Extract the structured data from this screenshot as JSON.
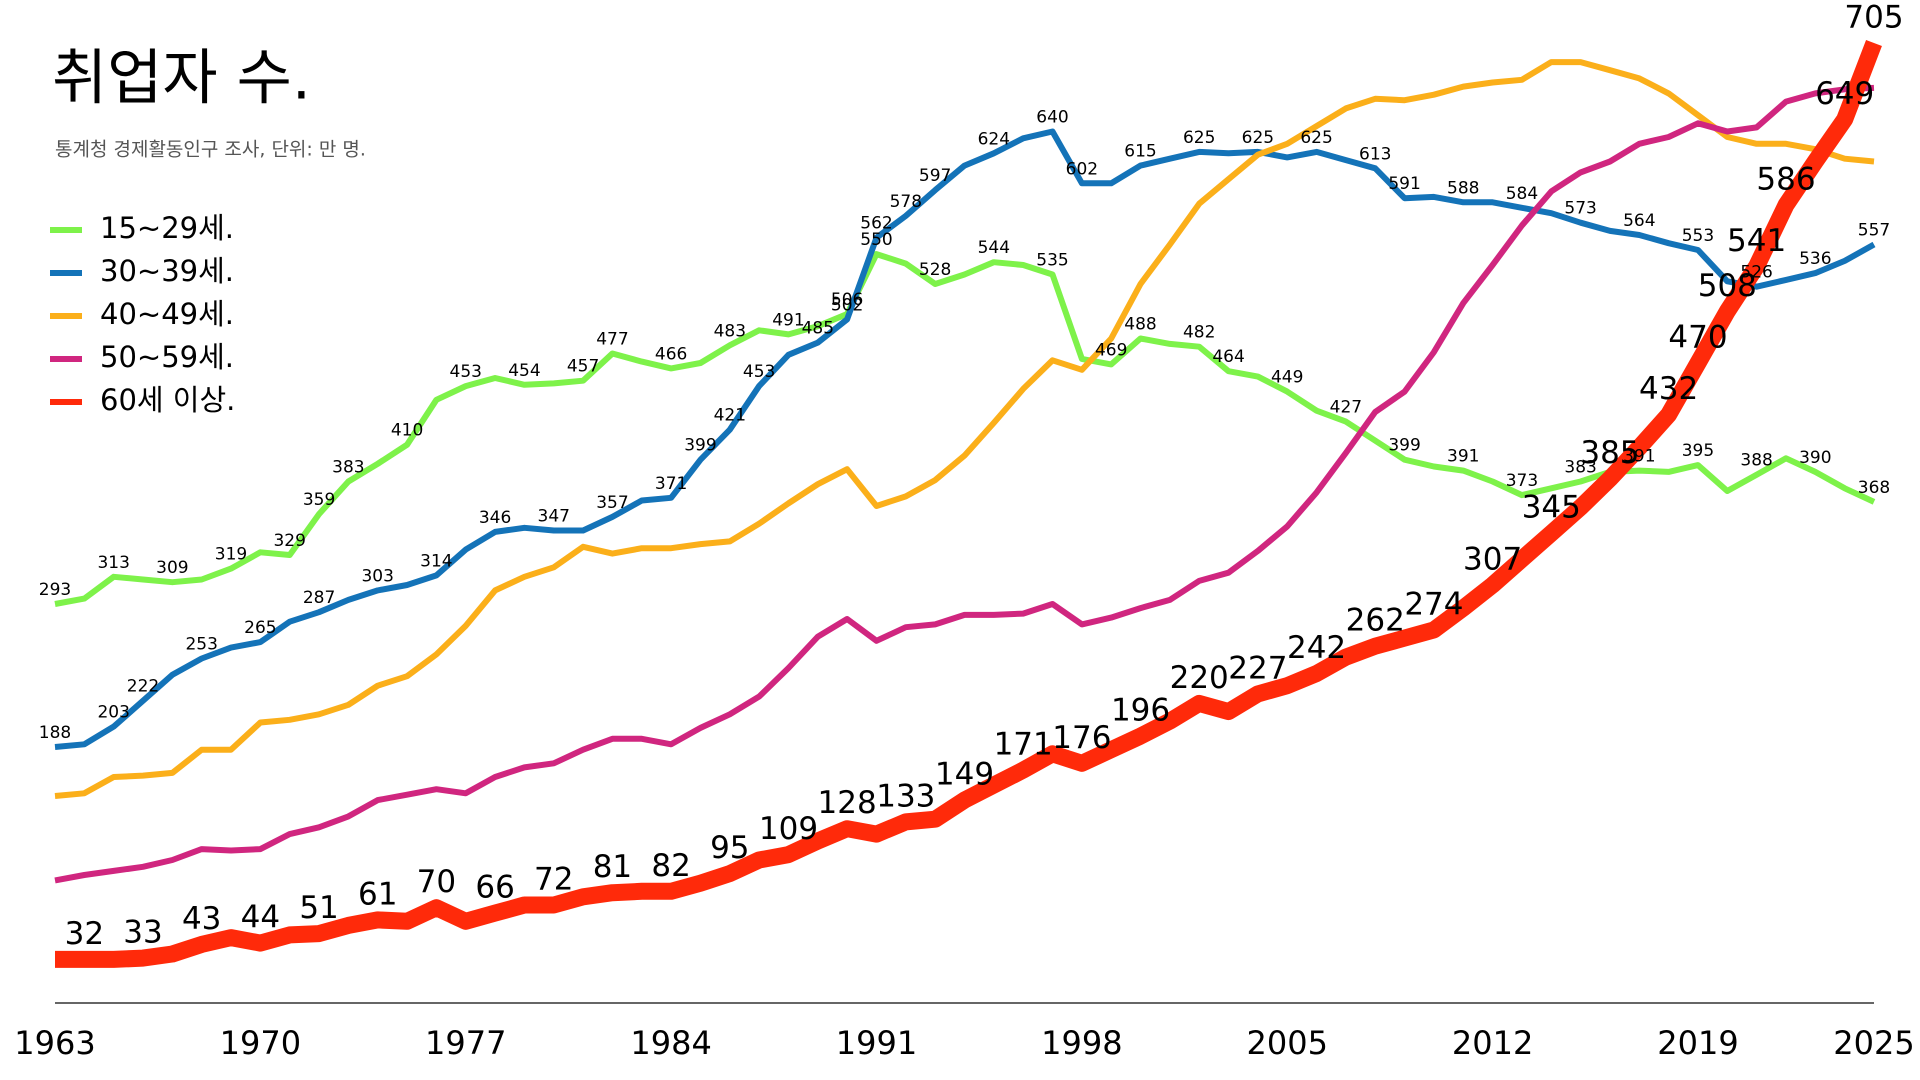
{
  "chart_data": {
    "type": "line",
    "title": "취업자 수.",
    "subtitle": "통계청 경제활동인구 조사, 단위: 만 명.",
    "legend": "upper left",
    "x": [
      1963,
      1964,
      1965,
      1966,
      1967,
      1968,
      1969,
      1970,
      1971,
      1972,
      1973,
      1974,
      1975,
      1976,
      1977,
      1978,
      1979,
      1980,
      1981,
      1982,
      1983,
      1984,
      1985,
      1986,
      1987,
      1988,
      1989,
      1990,
      1991,
      1992,
      1993,
      1994,
      1995,
      1996,
      1997,
      1998,
      1999,
      2000,
      2001,
      2002,
      2003,
      2004,
      2005,
      2006,
      2007,
      2008,
      2009,
      2010,
      2011,
      2012,
      2013,
      2014,
      2015,
      2016,
      2017,
      2018,
      2019,
      2020,
      2021,
      2022,
      2023,
      2024,
      2025
    ],
    "xlim": [
      1963,
      2025
    ],
    "xticks": [
      1963,
      1970,
      1977,
      1984,
      1991,
      1998,
      2005,
      2012,
      2019,
      2025
    ],
    "ylim": [
      0,
      705
    ],
    "series": [
      {
        "name": "15~29세.",
        "color": "#7ef24a",
        "values": [
          293,
          297,
          313,
          311,
          309,
          311,
          319,
          331,
          329,
          359,
          383,
          396,
          410,
          443,
          453,
          459,
          454,
          455,
          457,
          477,
          471,
          466,
          470,
          483,
          494,
          491,
          497,
          506,
          550,
          543,
          528,
          535,
          544,
          542,
          535,
          473,
          469,
          488,
          484,
          482,
          464,
          460,
          449,
          435,
          427,
          413,
          399,
          394,
          391,
          383,
          373,
          378,
          383,
          390,
          391,
          390,
          395,
          376,
          388,
          400,
          390,
          378,
          368
        ],
        "value_labels": [
          "293",
          null,
          "313",
          null,
          "309",
          null,
          "319",
          null,
          "329",
          "359",
          "383",
          null,
          "410",
          null,
          "453",
          null,
          "454",
          null,
          "457",
          "477",
          null,
          "466",
          null,
          "483",
          null,
          "491",
          null,
          "506",
          "550",
          null,
          "528",
          null,
          "544",
          null,
          "535",
          null,
          "469",
          "488",
          null,
          "482",
          "464",
          null,
          "449",
          null,
          "427",
          null,
          "399",
          null,
          "391",
          null,
          "373",
          null,
          "383",
          null,
          "391",
          null,
          "395",
          null,
          "388",
          null,
          "390",
          null,
          "368"
        ]
      },
      {
        "name": "30~39세.",
        "color": "#1473b8",
        "values": [
          188,
          190,
          203,
          222,
          241,
          253,
          261,
          265,
          280,
          287,
          296,
          303,
          307,
          314,
          333,
          346,
          349,
          347,
          347,
          357,
          369,
          371,
          399,
          421,
          453,
          476,
          485,
          502,
          562,
          578,
          597,
          615,
          624,
          635,
          640,
          602,
          602,
          615,
          620,
          625,
          624,
          625,
          621,
          625,
          619,
          613,
          591,
          592,
          588,
          588,
          584,
          580,
          573,
          567,
          564,
          558,
          553,
          530,
          526,
          531,
          536,
          545,
          557
        ],
        "value_labels": [
          "188",
          null,
          "203",
          "222",
          null,
          "253",
          null,
          "265",
          null,
          "287",
          null,
          "303",
          null,
          "314",
          null,
          "346",
          null,
          "347",
          null,
          "357",
          null,
          "371",
          "399",
          "421",
          "453",
          null,
          "485",
          "502",
          "562",
          "578",
          "597",
          null,
          "624",
          null,
          "640",
          "602",
          null,
          "615",
          null,
          "625",
          null,
          "625",
          null,
          "625",
          null,
          "613",
          "591",
          null,
          "588",
          null,
          "584",
          null,
          "573",
          null,
          "564",
          null,
          "553",
          null,
          "526",
          null,
          "536",
          null,
          "557"
        ]
      },
      {
        "name": "40~49세.",
        "color": "#fbaf1a",
        "values": [
          152,
          154,
          166,
          167,
          169,
          186,
          186,
          206,
          208,
          212,
          219,
          233,
          240,
          256,
          277,
          303,
          313,
          320,
          335,
          330,
          334,
          334,
          337,
          339,
          352,
          367,
          381,
          392,
          365,
          372,
          384,
          402,
          426,
          451,
          472,
          465,
          488,
          528,
          557,
          587,
          605,
          623,
          631,
          644,
          657,
          664,
          663,
          667,
          673,
          676,
          678,
          691,
          691,
          685,
          679,
          668,
          652,
          636,
          631,
          631,
          627,
          620,
          618
        ]
      },
      {
        "name": "50~59세.",
        "color": "#d0267f",
        "values": [
          90,
          94,
          97,
          100,
          105,
          113,
          112,
          113,
          124,
          129,
          137,
          149,
          153,
          157,
          154,
          166,
          173,
          176,
          186,
          194,
          194,
          190,
          202,
          212,
          225,
          246,
          269,
          282,
          266,
          276,
          278,
          285,
          285,
          286,
          293,
          278,
          283,
          290,
          296,
          310,
          316,
          332,
          350,
          375,
          404,
          434,
          449,
          478,
          514,
          542,
          571,
          596,
          610,
          618,
          631,
          636,
          646,
          640,
          643,
          662,
          668,
          671,
          672
        ]
      },
      {
        "name": "60세 이상.",
        "color": "#ff2a0a",
        "values": [
          32,
          32,
          32,
          33,
          36,
          43,
          48,
          44,
          50,
          51,
          57,
          61,
          60,
          70,
          60,
          66,
          72,
          72,
          78,
          81,
          82,
          82,
          88,
          95,
          105,
          109,
          119,
          128,
          124,
          133,
          135,
          149,
          160,
          171,
          183,
          176,
          186,
          196,
          207,
          220,
          214,
          227,
          233,
          242,
          254,
          262,
          268,
          274,
          290,
          307,
          326,
          345,
          364,
          385,
          408,
          432,
          470,
          508,
          541,
          586,
          618,
          649,
          705
        ],
        "value_labels": [
          null,
          "32",
          null,
          "33",
          null,
          "43",
          null,
          "44",
          null,
          "51",
          null,
          "61",
          null,
          "70",
          null,
          "66",
          null,
          "72",
          null,
          "81",
          null,
          "82",
          null,
          "95",
          null,
          "109",
          null,
          "128",
          null,
          "133",
          null,
          "149",
          null,
          "171",
          null,
          "176",
          null,
          "196",
          null,
          "220",
          null,
          "227",
          null,
          "242",
          null,
          "262",
          null,
          "274",
          null,
          "307",
          null,
          "345",
          null,
          "385",
          null,
          "432",
          "470",
          "508",
          "541",
          "586",
          null,
          "649",
          "705"
        ]
      }
    ]
  }
}
